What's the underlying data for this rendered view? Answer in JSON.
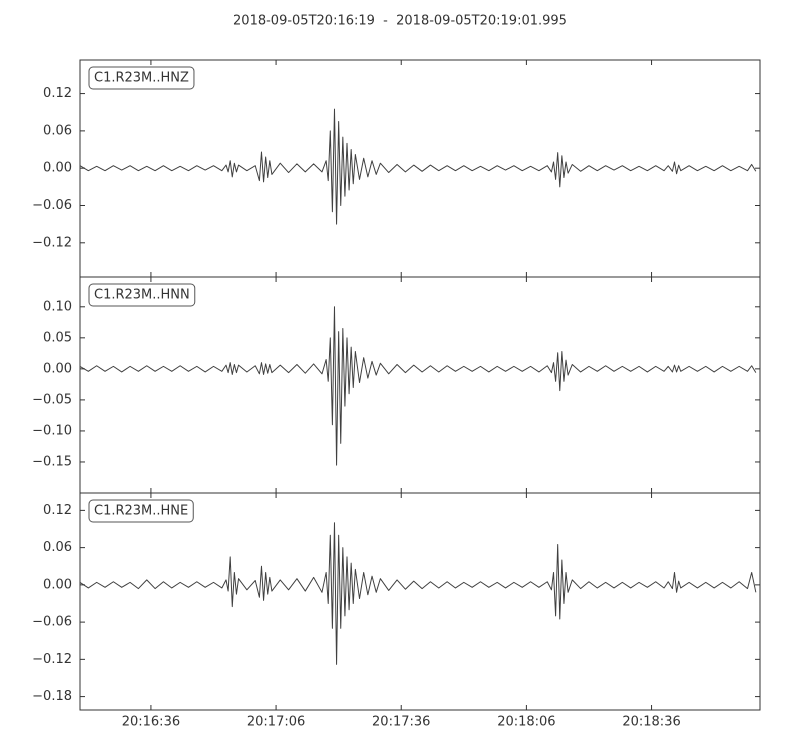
{
  "chart_data": [
    {
      "type": "line",
      "title": "2018-09-05T20:16:19  -  2018-09-05T20:19:01.995",
      "label": "C1.R23M..HNZ",
      "color": "#404040",
      "x": [
        0,
        2,
        4,
        6,
        8,
        10,
        12,
        14,
        16,
        18,
        20,
        22,
        24,
        26,
        28,
        30,
        32,
        34,
        35,
        35.5,
        36,
        36.5,
        37,
        37.5,
        38,
        40,
        42,
        43,
        43.5,
        44,
        44.5,
        45,
        45.5,
        46,
        48,
        50,
        52,
        54,
        56,
        58,
        59,
        59.5,
        60,
        60.5,
        61,
        61.5,
        62,
        62.5,
        63,
        63.5,
        64,
        64.5,
        65,
        65.5,
        66,
        67,
        68,
        69,
        70,
        71,
        72,
        74,
        76,
        78,
        80,
        82,
        84,
        86,
        88,
        90,
        92,
        94,
        96,
        98,
        100,
        102,
        104,
        106,
        108,
        110,
        112,
        113,
        113.5,
        114,
        114.5,
        115,
        115.5,
        116,
        116.5,
        117,
        118,
        120,
        122,
        124,
        126,
        128,
        130,
        132,
        134,
        136,
        138,
        140,
        141,
        142,
        142.5,
        143,
        143.5,
        144,
        146,
        148,
        150,
        152,
        154,
        156,
        158,
        160,
        161,
        162
      ],
      "values": [
        0.004,
        -0.004,
        0.003,
        -0.004,
        0.004,
        -0.003,
        0.004,
        -0.004,
        0.003,
        -0.004,
        0.004,
        -0.004,
        0.003,
        -0.004,
        0.004,
        -0.003,
        0.004,
        -0.004,
        0.005,
        -0.006,
        0.012,
        -0.014,
        0.008,
        -0.006,
        0.005,
        -0.004,
        0.004,
        -0.02,
        0.026,
        -0.022,
        0.018,
        -0.015,
        0.012,
        -0.01,
        0.008,
        -0.007,
        0.007,
        -0.006,
        0.007,
        -0.006,
        0.012,
        -0.02,
        0.06,
        -0.07,
        0.095,
        -0.09,
        0.075,
        -0.06,
        0.05,
        -0.045,
        0.04,
        -0.035,
        0.03,
        -0.025,
        0.022,
        -0.018,
        0.016,
        -0.014,
        0.012,
        -0.01,
        0.008,
        -0.007,
        0.006,
        -0.006,
        0.005,
        -0.005,
        0.005,
        -0.004,
        0.004,
        -0.004,
        0.004,
        -0.004,
        0.003,
        -0.004,
        0.004,
        -0.003,
        0.004,
        -0.004,
        0.003,
        -0.004,
        0.004,
        -0.006,
        0.01,
        -0.018,
        0.025,
        -0.03,
        0.02,
        -0.015,
        0.01,
        -0.008,
        0.006,
        -0.005,
        0.004,
        -0.004,
        0.004,
        -0.003,
        0.004,
        -0.004,
        0.003,
        -0.004,
        0.004,
        -0.004,
        0.004,
        -0.005,
        0.01,
        -0.009,
        0.005,
        -0.004,
        0.004,
        -0.004,
        0.003,
        -0.004,
        0.004,
        -0.004,
        0.003,
        -0.004,
        0.006,
        -0.005
      ],
      "xlim": [
        0,
        162.995
      ],
      "ylim": [
        -0.175,
        0.174
      ],
      "yticks": [
        {
          "value": -0.12,
          "label": "−0.12"
        },
        {
          "value": -0.06,
          "label": "−0.06"
        },
        {
          "value": 0,
          "label": "0.00"
        },
        {
          "value": 0.06,
          "label": "0.06"
        },
        {
          "value": 0.12,
          "label": "0.12"
        }
      ]
    },
    {
      "type": "line",
      "label": "C1.R23M..HNN",
      "color": "#404040",
      "x": [
        0,
        2,
        4,
        6,
        8,
        10,
        12,
        14,
        16,
        18,
        20,
        22,
        24,
        26,
        28,
        30,
        32,
        34,
        35,
        35.5,
        36,
        36.5,
        37,
        37.5,
        38,
        40,
        42,
        43,
        43.5,
        44,
        44.5,
        45,
        45.5,
        46,
        48,
        50,
        52,
        54,
        56,
        58,
        59,
        59.5,
        60,
        60.5,
        61,
        61.5,
        62,
        62.5,
        63,
        63.5,
        64,
        64.5,
        65,
        65.5,
        66,
        67,
        68,
        69,
        70,
        71,
        72,
        74,
        76,
        78,
        80,
        82,
        84,
        86,
        88,
        90,
        92,
        94,
        96,
        98,
        100,
        102,
        104,
        106,
        108,
        110,
        112,
        113,
        113.5,
        114,
        114.5,
        115,
        115.5,
        116,
        116.5,
        117,
        118,
        120,
        122,
        124,
        126,
        128,
        130,
        132,
        134,
        136,
        138,
        140,
        141,
        142,
        142.5,
        143,
        143.5,
        144,
        146,
        148,
        150,
        152,
        154,
        156,
        158,
        160,
        161,
        162
      ],
      "values": [
        0.004,
        -0.004,
        0.005,
        -0.004,
        0.004,
        -0.005,
        0.004,
        -0.004,
        0.005,
        -0.004,
        0.004,
        -0.004,
        0.005,
        -0.004,
        0.004,
        -0.005,
        0.004,
        -0.004,
        0.006,
        -0.006,
        0.01,
        -0.009,
        0.007,
        -0.006,
        0.006,
        -0.005,
        0.005,
        -0.008,
        0.01,
        -0.009,
        0.008,
        -0.007,
        0.007,
        -0.006,
        0.006,
        -0.006,
        0.007,
        -0.007,
        0.008,
        -0.008,
        0.015,
        -0.02,
        0.05,
        -0.09,
        0.1,
        -0.155,
        0.06,
        -0.12,
        0.065,
        -0.06,
        0.05,
        -0.04,
        0.035,
        -0.03,
        0.028,
        -0.022,
        0.018,
        -0.015,
        0.012,
        -0.01,
        0.009,
        -0.008,
        0.007,
        -0.006,
        0.006,
        -0.005,
        0.005,
        -0.005,
        0.005,
        -0.004,
        0.004,
        -0.004,
        0.004,
        -0.005,
        0.004,
        -0.004,
        0.004,
        -0.004,
        0.004,
        -0.005,
        0.005,
        -0.006,
        0.01,
        -0.02,
        0.026,
        -0.035,
        0.028,
        -0.02,
        0.014,
        -0.01,
        0.007,
        -0.005,
        0.004,
        -0.004,
        0.005,
        -0.004,
        0.004,
        -0.004,
        0.004,
        -0.005,
        0.004,
        -0.004,
        0.004,
        -0.005,
        0.006,
        -0.005,
        0.005,
        -0.004,
        0.004,
        -0.004,
        0.004,
        -0.005,
        0.004,
        -0.004,
        0.004,
        -0.004,
        0.005,
        -0.006
      ],
      "xlim": [
        0,
        162.995
      ],
      "ylim": [
        -0.2,
        0.148
      ],
      "yticks": [
        {
          "value": -0.15,
          "label": "−0.15"
        },
        {
          "value": -0.1,
          "label": "−0.10"
        },
        {
          "value": -0.05,
          "label": "−0.05"
        },
        {
          "value": 0,
          "label": "0.00"
        },
        {
          "value": 0.05,
          "label": "0.05"
        },
        {
          "value": 0.1,
          "label": "0.10"
        }
      ]
    },
    {
      "type": "line",
      "label": "C1.R23M..HNE",
      "color": "#404040",
      "x": [
        0,
        2,
        4,
        6,
        8,
        10,
        12,
        14,
        16,
        18,
        20,
        22,
        24,
        26,
        28,
        30,
        32,
        34,
        35,
        35.5,
        36,
        36.5,
        37,
        37.5,
        38,
        40,
        42,
        43,
        43.5,
        44,
        44.5,
        45,
        45.5,
        46,
        48,
        50,
        52,
        54,
        56,
        58,
        59,
        59.5,
        60,
        60.5,
        61,
        61.5,
        62,
        62.5,
        63,
        63.5,
        64,
        64.5,
        65,
        65.5,
        66,
        67,
        68,
        69,
        70,
        71,
        72,
        74,
        76,
        78,
        80,
        82,
        84,
        86,
        88,
        90,
        92,
        94,
        96,
        98,
        100,
        102,
        104,
        106,
        108,
        110,
        112,
        113,
        113.5,
        114,
        114.5,
        115,
        115.5,
        116,
        116.5,
        117,
        118,
        120,
        122,
        124,
        126,
        128,
        130,
        132,
        134,
        136,
        138,
        140,
        141,
        142,
        142.5,
        143,
        143.5,
        144,
        146,
        148,
        150,
        152,
        154,
        156,
        158,
        160,
        161,
        162
      ],
      "values": [
        0.004,
        -0.005,
        0.004,
        -0.004,
        0.005,
        -0.004,
        0.004,
        -0.006,
        0.008,
        -0.006,
        0.005,
        -0.005,
        0.004,
        -0.004,
        0.005,
        -0.004,
        0.004,
        -0.005,
        0.008,
        -0.01,
        0.045,
        -0.035,
        0.02,
        -0.015,
        0.01,
        -0.008,
        0.007,
        -0.02,
        0.03,
        -0.025,
        0.02,
        -0.015,
        0.012,
        -0.01,
        0.008,
        -0.008,
        0.01,
        -0.01,
        0.012,
        -0.012,
        0.02,
        -0.03,
        0.08,
        -0.07,
        0.1,
        -0.128,
        0.08,
        -0.07,
        0.06,
        -0.05,
        0.045,
        -0.04,
        0.035,
        -0.03,
        0.025,
        -0.022,
        0.02,
        -0.016,
        0.014,
        -0.012,
        0.01,
        -0.009,
        0.008,
        -0.007,
        0.006,
        -0.006,
        0.005,
        -0.005,
        0.005,
        -0.005,
        0.004,
        -0.004,
        0.005,
        -0.004,
        0.004,
        -0.005,
        0.004,
        -0.004,
        0.005,
        -0.004,
        0.005,
        -0.008,
        0.02,
        -0.05,
        0.065,
        -0.055,
        0.04,
        -0.03,
        0.02,
        -0.012,
        0.008,
        -0.006,
        0.005,
        -0.005,
        0.004,
        -0.005,
        0.004,
        -0.005,
        0.004,
        -0.004,
        0.005,
        -0.005,
        0.005,
        -0.006,
        0.02,
        -0.012,
        0.006,
        -0.005,
        0.004,
        -0.005,
        0.004,
        -0.005,
        0.004,
        -0.005,
        0.005,
        -0.006,
        0.02,
        -0.012
      ],
      "xlim": [
        0,
        162.995
      ],
      "ylim": [
        -0.2016,
        0.148
      ],
      "yticks": [
        {
          "value": -0.18,
          "label": "−0.18"
        },
        {
          "value": -0.12,
          "label": "−0.12"
        },
        {
          "value": -0.06,
          "label": "−0.06"
        },
        {
          "value": 0,
          "label": "0.00"
        },
        {
          "value": 0.06,
          "label": "0.06"
        },
        {
          "value": 0.12,
          "label": "0.12"
        }
      ],
      "xticks": [
        {
          "value": 17,
          "label": "20:16:36"
        },
        {
          "value": 47,
          "label": "20:17:06"
        },
        {
          "value": 77,
          "label": "20:17:36"
        },
        {
          "value": 107,
          "label": "20:18:06"
        },
        {
          "value": 137,
          "label": "20:18:36"
        }
      ]
    }
  ]
}
